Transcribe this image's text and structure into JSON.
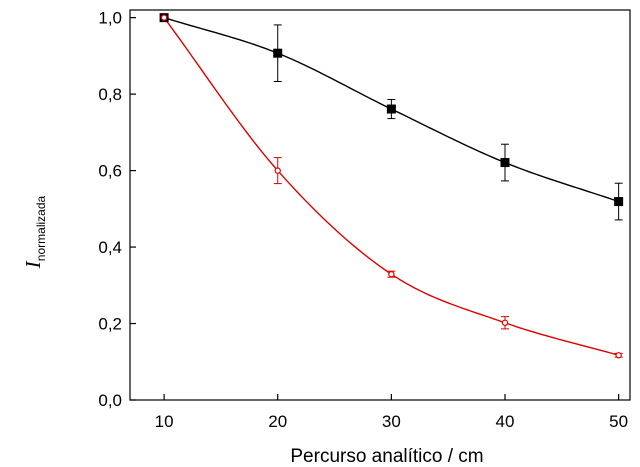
{
  "chart_data": {
    "type": "scatter",
    "xlabel": "Percurso analítico / cm",
    "ylabel_main": "I",
    "ylabel_sub": "normalizada",
    "xlim": [
      7,
      51
    ],
    "ylim": [
      0.0,
      1.02
    ],
    "x_ticks": [
      10,
      20,
      30,
      40,
      50
    ],
    "x_tick_labels": [
      "10",
      "20",
      "30",
      "40",
      "50"
    ],
    "y_ticks": [
      0.0,
      0.2,
      0.4,
      0.6,
      0.8,
      1.0
    ],
    "y_tick_labels": [
      "0,0",
      "0,2",
      "0,4",
      "0,6",
      "0,8",
      "1,0"
    ],
    "grid": false,
    "series": [
      {
        "color": "#000000",
        "marker": "filled-square",
        "x": [
          10,
          20,
          30,
          40,
          50
        ],
        "y": [
          1.0,
          0.907,
          0.761,
          0.621,
          0.519
        ],
        "err": [
          0.0,
          0.074,
          0.025,
          0.048,
          0.048
        ],
        "fit": "logistic"
      },
      {
        "color": "#e00000",
        "marker": "open-circle",
        "x": [
          10,
          20,
          30,
          40,
          50
        ],
        "y": [
          1.0,
          0.6,
          0.329,
          0.202,
          0.117
        ],
        "err": [
          0.0,
          0.034,
          0.008,
          0.016,
          0.005
        ],
        "fit": "exponential"
      }
    ]
  }
}
